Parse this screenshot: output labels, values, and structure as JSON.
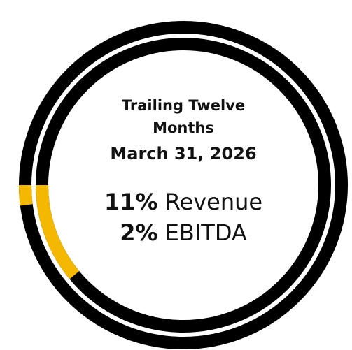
{
  "chart_data": {
    "type": "donut",
    "title": "Trailing Twelve Months",
    "subtitle": "March 31, 2026",
    "series": [
      {
        "name": "Revenue",
        "color": "#f5b800",
        "values": [
          11
        ],
        "value_labels": [
          "11%"
        ]
      },
      {
        "name": "EBITDA",
        "color": "#f5b800",
        "values": [
          2
        ],
        "value_labels": [
          "2%"
        ]
      }
    ]
  }
}
